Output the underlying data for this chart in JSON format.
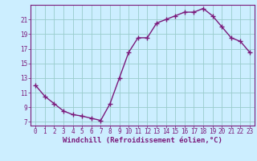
{
  "x": [
    0,
    1,
    2,
    3,
    4,
    5,
    6,
    7,
    8,
    9,
    10,
    11,
    12,
    13,
    14,
    15,
    16,
    17,
    18,
    19,
    20,
    21,
    22,
    23
  ],
  "y": [
    12.0,
    10.5,
    9.5,
    8.5,
    8.0,
    7.8,
    7.5,
    7.2,
    9.5,
    13.0,
    16.5,
    18.5,
    18.5,
    20.5,
    21.0,
    21.5,
    22.0,
    22.0,
    22.5,
    21.5,
    20.0,
    18.5,
    18.0,
    16.5
  ],
  "xlim": [
    -0.5,
    23.5
  ],
  "ylim": [
    6.5,
    23.0
  ],
  "yticks": [
    7,
    9,
    11,
    13,
    15,
    17,
    19,
    21
  ],
  "xticks": [
    0,
    1,
    2,
    3,
    4,
    5,
    6,
    7,
    8,
    9,
    10,
    11,
    12,
    13,
    14,
    15,
    16,
    17,
    18,
    19,
    20,
    21,
    22,
    23
  ],
  "xtick_labels": [
    "0",
    "1",
    "2",
    "3",
    "4",
    "5",
    "6",
    "7",
    "8",
    "9",
    "10",
    "11",
    "12",
    "13",
    "14",
    "15",
    "16",
    "17",
    "18",
    "19",
    "20",
    "21",
    "22",
    "23"
  ],
  "xlabel": "Windchill (Refroidissement éolien,°C)",
  "line_color": "#7b1a7b",
  "marker_color": "#7b1a7b",
  "bg_color": "#cceeff",
  "grid_color": "#99cccc",
  "axis_color": "#7b1a7b",
  "tick_color": "#7b1a7b",
  "label_color": "#7b1a7b",
  "marker": "+",
  "marker_size": 4,
  "linewidth": 1.0,
  "xlabel_fontsize": 6.5,
  "tick_fontsize": 5.5
}
